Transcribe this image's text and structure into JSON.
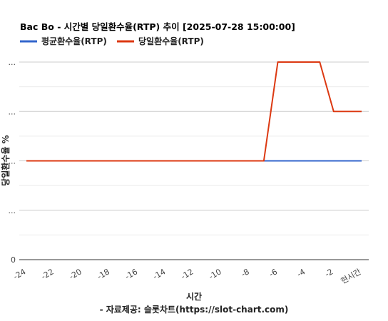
{
  "chart_data": {
    "type": "line",
    "title": "Bac Bo - 시간별 당일환수율(RTP) 추이 [2025-07-28 15:00:00]",
    "xlabel": "시간",
    "source": "- 자료제공: 슬롯차트(https://slot-chart.com)",
    "ylabel": "당일환수율 %",
    "x": [
      -24,
      -23,
      -22,
      -21,
      -20,
      -19,
      -18,
      -17,
      -16,
      -15,
      -14,
      -13,
      -12,
      -11,
      -10,
      -9,
      -8,
      -7,
      -6,
      -5,
      -4,
      -3,
      -2,
      -1,
      0
    ],
    "x_tick_labels": [
      "-24",
      "-22",
      "-20",
      "-18",
      "-16",
      "-14",
      "-12",
      "-10",
      "-8",
      "-6",
      "-4",
      "-2",
      "현시간"
    ],
    "x_tick_values": [
      -24,
      -22,
      -20,
      -18,
      -16,
      -14,
      -12,
      -10,
      -8,
      -6,
      -4,
      -2,
      0
    ],
    "y_tick_labels": [
      "0",
      "...",
      "...",
      "...",
      "..."
    ],
    "ylim": [
      0,
      8
    ],
    "series": [
      {
        "name": "평균환수율(RTP)",
        "color": "#3366cc",
        "values": [
          4,
          4,
          4,
          4,
          4,
          4,
          4,
          4,
          4,
          4,
          4,
          4,
          4,
          4,
          4,
          4,
          4,
          4,
          4,
          4,
          4,
          4,
          4,
          4,
          4
        ]
      },
      {
        "name": "당일환수율(RTP)",
        "color": "#dc3912",
        "values": [
          4,
          4,
          4,
          4,
          4,
          4,
          4,
          4,
          4,
          4,
          4,
          4,
          4,
          4,
          4,
          4,
          4,
          4,
          8,
          8,
          8,
          8,
          6,
          6,
          6
        ]
      }
    ],
    "grid": true,
    "legend_position": "top-left"
  }
}
